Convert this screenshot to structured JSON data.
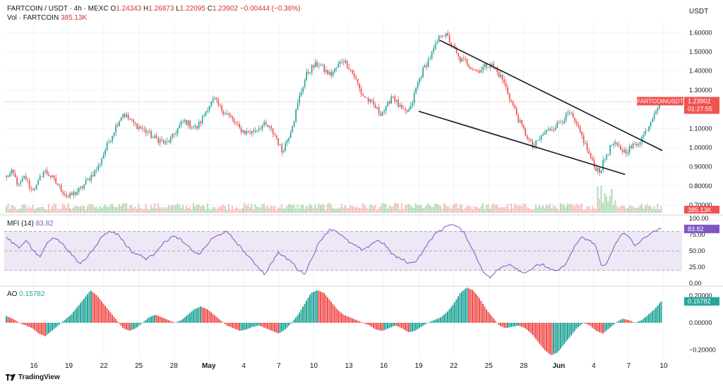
{
  "header": {
    "symbol": "FARTCOIN / USDT · 4h · MEXC",
    "o_label": "O",
    "o_value": "1.24343",
    "h_label": "H",
    "h_value": "1.26873",
    "l_label": "L",
    "l_value": "1.22095",
    "c_label": "C",
    "c_value": "1.23902",
    "change": "−0.00444 (−0.36%)",
    "vol_label": "Vol · FARTCOIN",
    "vol_value": "385.13K"
  },
  "currency": "USDT",
  "price_axis": [
    "1.60000",
    "1.50000",
    "1.40000",
    "1.30000",
    "1.20000",
    "1.10000",
    "1.00000",
    "0.90000",
    "0.80000",
    "0.70000"
  ],
  "price_tag": {
    "symbol": "FARTCOINUSDT",
    "price": "1.23902",
    "countdown": "01:27:55"
  },
  "volume_tag": "385.13K",
  "mfi": {
    "label": "MFI (14)",
    "value": "83.82",
    "axis": [
      "100.00",
      "75.00",
      "50.00",
      "25.00",
      "0.00"
    ]
  },
  "ao": {
    "label": "AO",
    "value": "0.15782",
    "axis": [
      "0.20000",
      "0.00000",
      "−0.20000"
    ]
  },
  "time_axis": [
    "16",
    "19",
    "22",
    "25",
    "28",
    "May",
    "4",
    "7",
    "10",
    "13",
    "16",
    "19",
    "22",
    "25",
    "28",
    "Jun",
    "4",
    "7",
    "10"
  ],
  "branding": "TradingView",
  "colors": {
    "up": "#26a69a",
    "down": "#ef5350",
    "mfi": "#7e57c2",
    "band": "#ede7f6"
  },
  "chart_data": {
    "type": "candlestick",
    "timeframe": "4h",
    "ylim": [
      0.66,
      1.66
    ],
    "close_path": [
      0.85,
      0.87,
      0.8,
      0.85,
      0.78,
      0.8,
      0.88,
      0.86,
      0.82,
      0.78,
      0.74,
      0.76,
      0.78,
      0.82,
      0.86,
      0.9,
      0.98,
      1.05,
      1.12,
      1.18,
      1.15,
      1.12,
      1.1,
      1.08,
      1.05,
      1.04,
      1.02,
      1.05,
      1.1,
      1.14,
      1.12,
      1.1,
      1.15,
      1.22,
      1.25,
      1.2,
      1.18,
      1.14,
      1.1,
      1.08,
      1.08,
      1.1,
      1.12,
      1.1,
      1.06,
      0.98,
      1.05,
      1.15,
      1.28,
      1.38,
      1.42,
      1.44,
      1.4,
      1.38,
      1.42,
      1.46,
      1.42,
      1.36,
      1.28,
      1.25,
      1.22,
      1.18,
      1.2,
      1.28,
      1.22,
      1.18,
      1.2,
      1.32,
      1.4,
      1.46,
      1.52,
      1.6,
      1.58,
      1.52,
      1.46,
      1.45,
      1.42,
      1.4,
      1.42,
      1.44,
      1.4,
      1.36,
      1.28,
      1.2,
      1.12,
      1.06,
      1.0,
      1.04,
      1.08,
      1.1,
      1.12,
      1.15,
      1.18,
      1.12,
      1.06,
      0.98,
      0.9,
      0.88,
      0.96,
      1.02,
      1.0,
      0.98,
      1.0,
      1.02,
      1.06,
      1.12,
      1.2,
      1.24
    ],
    "candles_per_day": 6,
    "days": 62,
    "volume_k_peak": 800,
    "volume_last_k": 385.13,
    "trendlines": [
      {
        "name": "upper",
        "from": {
          "day": 41,
          "price": 1.56
        },
        "to": {
          "day": 62,
          "price": 0.985
        }
      },
      {
        "name": "lower",
        "from": {
          "day": 39,
          "price": 1.19
        },
        "to": {
          "day": 58.5,
          "price": 0.86
        }
      }
    ],
    "horizontal_level": 1.24,
    "mfi_range": [
      0,
      100
    ],
    "mfi_bands": [
      20,
      50,
      80
    ],
    "mfi_path": [
      70,
      62,
      55,
      68,
      50,
      40,
      60,
      72,
      65,
      55,
      42,
      30,
      38,
      52,
      66,
      78,
      80,
      74,
      60,
      48,
      44,
      38,
      42,
      55,
      64,
      72,
      70,
      60,
      52,
      44,
      55,
      68,
      74,
      80,
      72,
      60,
      48,
      36,
      26,
      14,
      30,
      48,
      40,
      34,
      22,
      14,
      35,
      58,
      74,
      84,
      80,
      70,
      62,
      56,
      50,
      60,
      66,
      62,
      48,
      40,
      36,
      30,
      36,
      50,
      66,
      78,
      84,
      92,
      88,
      80,
      62,
      40,
      20,
      8,
      18,
      26,
      30,
      24,
      16,
      20,
      26,
      30,
      22,
      18,
      24,
      38,
      60,
      70,
      66,
      60,
      24,
      36,
      60,
      78,
      72,
      58,
      66,
      75,
      80,
      84
    ],
    "ao_range": [
      -0.26,
      0.26
    ],
    "ao_path": [
      0.05,
      0.03,
      0.0,
      -0.02,
      -0.04,
      -0.08,
      -0.1,
      -0.06,
      -0.02,
      0.02,
      0.06,
      0.12,
      0.18,
      0.24,
      0.2,
      0.14,
      0.08,
      0.02,
      -0.04,
      -0.06,
      -0.04,
      0.0,
      0.04,
      0.06,
      0.04,
      0.02,
      0.0,
      0.02,
      0.06,
      0.1,
      0.12,
      0.1,
      0.06,
      0.02,
      -0.02,
      -0.04,
      -0.06,
      -0.05,
      -0.03,
      -0.02,
      -0.04,
      -0.06,
      -0.08,
      -0.05,
      0.0,
      0.06,
      0.14,
      0.22,
      0.24,
      0.22,
      0.16,
      0.1,
      0.06,
      0.04,
      0.02,
      0.0,
      -0.02,
      -0.05,
      -0.06,
      -0.04,
      -0.02,
      -0.04,
      -0.07,
      -0.06,
      -0.03,
      0.0,
      0.02,
      0.04,
      0.08,
      0.14,
      0.22,
      0.26,
      0.24,
      0.18,
      0.1,
      0.04,
      -0.02,
      -0.04,
      -0.03,
      -0.02,
      -0.04,
      -0.08,
      -0.14,
      -0.2,
      -0.24,
      -0.22,
      -0.16,
      -0.1,
      -0.04,
      0.0,
      -0.02,
      -0.06,
      -0.08,
      -0.04,
      0.0,
      0.03,
      0.02,
      0.0,
      0.02,
      0.06,
      0.1,
      0.16
    ]
  }
}
